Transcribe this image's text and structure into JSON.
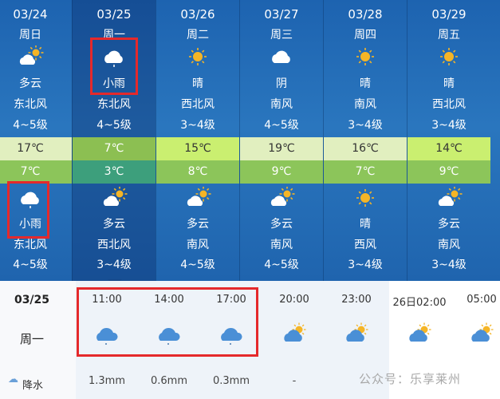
{
  "days": [
    {
      "date": "03/24",
      "week": "周日",
      "day_weather": "多云",
      "day_icon": "partly-cloudy-icon",
      "day_wind": "东北风",
      "day_level": "4~5级",
      "high": "17℃",
      "low": "7℃",
      "night_weather": "小雨",
      "night_icon": "light-rain-icon",
      "night_wind": "东北风",
      "night_level": "4~5级",
      "high_color": "#e1efbf",
      "low_color": "#8cc55a"
    },
    {
      "date": "03/25",
      "week": "周一",
      "day_weather": "小雨",
      "day_icon": "light-rain-icon",
      "day_wind": "东北风",
      "day_level": "4~5级",
      "high": "7℃",
      "low": "3℃",
      "night_weather": "多云",
      "night_icon": "partly-cloudy-icon",
      "night_wind": "西北风",
      "night_level": "3~4级",
      "high_color": "#8cbf52",
      "low_color": "#3d9f7c",
      "selected": true
    },
    {
      "date": "03/26",
      "week": "周二",
      "day_weather": "晴",
      "day_icon": "sunny-icon",
      "day_wind": "西北风",
      "day_level": "3~4级",
      "high": "15℃",
      "low": "8℃",
      "night_weather": "多云",
      "night_icon": "partly-cloudy-icon",
      "night_wind": "南风",
      "night_level": "4~5级",
      "high_color": "#caef70",
      "low_color": "#8cc55a"
    },
    {
      "date": "03/27",
      "week": "周三",
      "day_weather": "阴",
      "day_icon": "cloudy-icon",
      "day_wind": "南风",
      "day_level": "4~5级",
      "high": "19℃",
      "low": "9℃",
      "night_weather": "多云",
      "night_icon": "partly-cloudy-icon",
      "night_wind": "南风",
      "night_level": "4~5级",
      "high_color": "#e1efbf",
      "low_color": "#8cc55a"
    },
    {
      "date": "03/28",
      "week": "周四",
      "day_weather": "晴",
      "day_icon": "sunny-icon",
      "day_wind": "南风",
      "day_level": "3~4级",
      "high": "16℃",
      "low": "7℃",
      "night_weather": "晴",
      "night_icon": "sunny-icon",
      "night_wind": "西风",
      "night_level": "3~4级",
      "high_color": "#e1efbf",
      "low_color": "#8cc55a"
    },
    {
      "date": "03/29",
      "week": "周五",
      "day_weather": "晴",
      "day_icon": "sunny-icon",
      "day_wind": "西北风",
      "day_level": "3~4级",
      "high": "14℃",
      "low": "9℃",
      "night_weather": "多云",
      "night_icon": "partly-cloudy-icon",
      "night_wind": "南风",
      "night_level": "3~4级",
      "high_color": "#caef70",
      "low_color": "#8cc55a"
    }
  ],
  "detail": {
    "date": "03/25",
    "week": "周一",
    "rain_label": "降水",
    "rain_icon": "rain-cloud-icon",
    "hours": [
      {
        "time": "11:00",
        "icon": "light-rain-icon",
        "rain": "1.3mm"
      },
      {
        "time": "14:00",
        "icon": "light-rain-icon",
        "rain": "0.6mm"
      },
      {
        "time": "17:00",
        "icon": "light-rain-icon",
        "rain": "0.3mm"
      },
      {
        "time": "20:00",
        "icon": "partly-cloudy-icon",
        "rain": "-"
      },
      {
        "time": "23:00",
        "icon": "partly-cloudy-icon",
        "rain": ""
      },
      {
        "time": "26日02:00",
        "icon": "partly-cloudy-icon",
        "rain": ""
      },
      {
        "time": "05:00",
        "icon": "partly-cloudy-icon",
        "rain": ""
      }
    ]
  },
  "watermark": "公众号：乐享莱州",
  "colors": {
    "highlight_box": "#e5292b",
    "background": "#1f66b2"
  }
}
